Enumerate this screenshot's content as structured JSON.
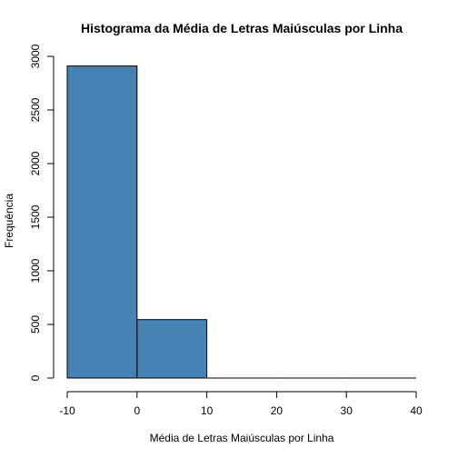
{
  "chart_data": {
    "type": "bar",
    "title": "Histograma da Média de Letras Maiúsculas por Linha",
    "xlabel": "Média de Letras Maiúsculas por Linha",
    "ylabel": "Frequência",
    "bins": [
      {
        "start": -10,
        "end": 0,
        "count": 2910
      },
      {
        "start": 0,
        "end": 10,
        "count": 545
      },
      {
        "start": 10,
        "end": 20,
        "count": 0
      },
      {
        "start": 20,
        "end": 30,
        "count": 0
      },
      {
        "start": 30,
        "end": 40,
        "count": 0
      }
    ],
    "xlim": [
      -10,
      40
    ],
    "ylim": [
      0,
      3000
    ],
    "x_ticks": [
      -10,
      0,
      10,
      20,
      30,
      40
    ],
    "y_ticks": [
      0,
      500,
      1000,
      1500,
      2000,
      2500,
      3000
    ],
    "bar_color": "#4682b4",
    "grid": false,
    "legend": "none"
  }
}
